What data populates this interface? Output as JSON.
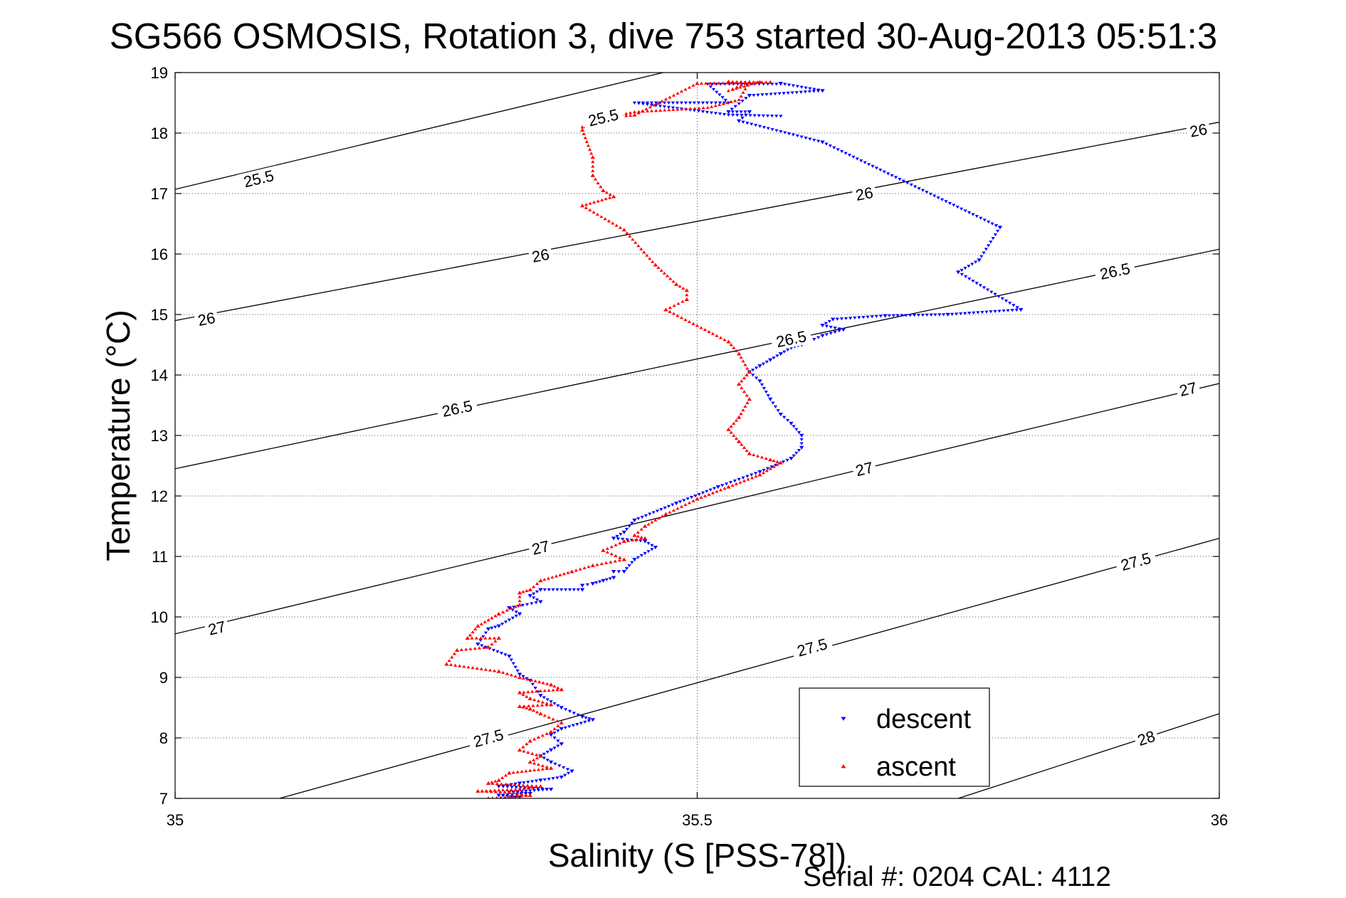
{
  "chart_data": {
    "type": "scatter",
    "title": "SG566 OSMOSIS, Rotation 3, dive 753 started 30-Aug-2013 05:51:3",
    "xlabel": "Salinity (S [PSS-78])",
    "ylabel": "Temperature (°C)",
    "xlim": [
      35,
      36
    ],
    "ylim": [
      7,
      19
    ],
    "x_ticks": [
      35,
      35.5,
      36
    ],
    "x_tick_labels": [
      "35",
      "35.5",
      "36"
    ],
    "y_ticks": [
      7,
      8,
      9,
      10,
      11,
      12,
      13,
      14,
      15,
      16,
      17,
      18,
      19
    ],
    "y_tick_labels": [
      "7",
      "8",
      "9",
      "10",
      "11",
      "12",
      "13",
      "14",
      "15",
      "16",
      "17",
      "18",
      "19"
    ],
    "grid": true,
    "legend_position": "bottom-right",
    "contours": [
      {
        "label": "25.5",
        "points": [
          [
            35.0,
            17.07
          ],
          [
            36.0,
            21.2
          ]
        ],
        "label_positions": [
          [
            35.08,
            17.25
          ],
          [
            35.41,
            18.26
          ]
        ]
      },
      {
        "label": "26",
        "points": [
          [
            35.0,
            14.9
          ],
          [
            36.0,
            18.18
          ]
        ],
        "label_positions": [
          [
            35.03,
            14.93
          ],
          [
            35.35,
            15.98
          ],
          [
            35.66,
            17.0
          ],
          [
            35.98,
            18.05
          ]
        ]
      },
      {
        "label": "26.5",
        "points": [
          [
            35.0,
            12.45
          ],
          [
            36.0,
            16.08
          ]
        ],
        "label_positions": [
          [
            35.27,
            13.45
          ],
          [
            35.59,
            14.6
          ],
          [
            35.9,
            15.72
          ]
        ]
      },
      {
        "label": "27",
        "points": [
          [
            35.0,
            9.72
          ],
          [
            36.0,
            13.86
          ]
        ],
        "label_positions": [
          [
            35.04,
            9.82
          ],
          [
            35.35,
            11.15
          ],
          [
            35.66,
            12.45
          ],
          [
            35.97,
            13.77
          ]
        ]
      },
      {
        "label": "27.5",
        "points": [
          [
            35.1,
            7.0
          ],
          [
            36.0,
            11.3
          ]
        ],
        "label_positions": [
          [
            35.3,
            8.0
          ],
          [
            35.61,
            9.5
          ],
          [
            35.92,
            10.92
          ]
        ]
      },
      {
        "label": "28",
        "points": [
          [
            35.75,
            7.0
          ],
          [
            36.0,
            8.4
          ]
        ],
        "label_positions": [
          [
            35.93,
            8.0
          ]
        ]
      }
    ],
    "series": [
      {
        "name": "descent",
        "color": "#0000ff",
        "marker": "down-triangle",
        "path": [
          [
            35.58,
            18.81
          ],
          [
            35.51,
            18.81
          ],
          [
            35.53,
            18.5
          ],
          [
            35.44,
            18.5
          ],
          [
            35.53,
            18.3
          ],
          [
            35.58,
            18.28
          ]
        ],
        "points": [
          [
            35.62,
            18.7
          ],
          [
            35.58,
            18.82
          ],
          [
            35.55,
            18.62
          ],
          [
            35.53,
            18.35
          ],
          [
            35.55,
            18.35
          ],
          [
            35.54,
            18.2
          ],
          [
            35.62,
            17.85
          ],
          [
            35.79,
            16.44
          ],
          [
            35.77,
            15.9
          ],
          [
            35.75,
            15.7
          ],
          [
            35.81,
            15.08
          ],
          [
            35.74,
            15.0
          ],
          [
            35.68,
            14.98
          ],
          [
            35.63,
            14.92
          ],
          [
            35.62,
            14.82
          ],
          [
            35.64,
            14.75
          ],
          [
            35.62,
            14.65
          ],
          [
            35.6,
            14.5
          ],
          [
            35.59,
            14.45
          ],
          [
            35.58,
            14.35
          ],
          [
            35.57,
            14.25
          ],
          [
            35.56,
            14.15
          ],
          [
            35.55,
            14.05
          ],
          [
            35.56,
            13.9
          ],
          [
            35.57,
            13.6
          ],
          [
            35.58,
            13.35
          ],
          [
            35.59,
            13.2
          ],
          [
            35.6,
            13.0
          ],
          [
            35.6,
            12.8
          ],
          [
            35.59,
            12.62
          ],
          [
            35.56,
            12.4
          ],
          [
            35.52,
            12.15
          ],
          [
            35.48,
            11.88
          ],
          [
            35.44,
            11.6
          ],
          [
            35.43,
            11.4
          ],
          [
            35.42,
            11.3
          ],
          [
            35.45,
            11.25
          ],
          [
            35.46,
            11.15
          ],
          [
            35.44,
            10.95
          ],
          [
            35.43,
            10.75
          ],
          [
            35.42,
            10.65
          ],
          [
            35.41,
            10.6
          ],
          [
            35.39,
            10.52
          ],
          [
            35.42,
            10.75
          ],
          [
            35.4,
            10.55
          ],
          [
            35.39,
            10.45
          ],
          [
            35.35,
            10.25
          ],
          [
            35.33,
            10.05
          ],
          [
            35.31,
            9.85
          ],
          [
            35.29,
            9.55
          ],
          [
            35.35,
            10.45
          ],
          [
            35.34,
            10.35
          ],
          [
            35.32,
            10.15
          ],
          [
            35.3,
            9.8
          ],
          [
            35.32,
            9.35
          ],
          [
            35.33,
            9.05
          ],
          [
            35.34,
            8.95
          ],
          [
            35.35,
            8.7
          ],
          [
            35.37,
            8.5
          ],
          [
            35.39,
            8.35
          ],
          [
            35.4,
            8.3
          ],
          [
            35.37,
            8.15
          ],
          [
            35.36,
            8.05
          ],
          [
            35.37,
            7.9
          ],
          [
            35.36,
            7.8
          ],
          [
            35.35,
            7.7
          ],
          [
            35.36,
            7.6
          ],
          [
            35.38,
            7.45
          ],
          [
            35.37,
            7.35
          ],
          [
            35.35,
            7.3
          ],
          [
            35.33,
            7.25
          ],
          [
            35.31,
            7.2
          ],
          [
            35.32,
            7.1
          ],
          [
            35.34,
            7.08
          ],
          [
            35.36,
            7.15
          ],
          [
            35.31,
            7.05
          ],
          [
            35.33,
            7.02
          ]
        ]
      },
      {
        "name": "ascent",
        "color": "#ff0000",
        "marker": "up-triangle",
        "path": [
          [
            35.56,
            18.85
          ],
          [
            35.53,
            18.7
          ],
          [
            35.55,
            18.85
          ],
          [
            35.54,
            18.55
          ],
          [
            35.51,
            18.42
          ],
          [
            35.44,
            18.35
          ],
          [
            35.42,
            18.28
          ],
          [
            35.41,
            18.2
          ],
          [
            35.39,
            18.1
          ]
        ],
        "points": [
          [
            35.57,
            18.84
          ],
          [
            35.53,
            18.85
          ],
          [
            35.5,
            18.82
          ],
          [
            35.44,
            18.3
          ],
          [
            35.4,
            18.22
          ],
          [
            35.39,
            18.05
          ],
          [
            35.4,
            17.6
          ],
          [
            35.4,
            17.3
          ],
          [
            35.41,
            17.05
          ],
          [
            35.39,
            16.8
          ],
          [
            35.42,
            16.95
          ],
          [
            35.43,
            16.4
          ],
          [
            35.46,
            15.82
          ],
          [
            35.48,
            15.5
          ],
          [
            35.49,
            15.25
          ],
          [
            35.47,
            15.08
          ],
          [
            35.49,
            15.4
          ],
          [
            35.53,
            14.55
          ],
          [
            35.54,
            14.35
          ],
          [
            35.55,
            14.05
          ],
          [
            35.54,
            13.85
          ],
          [
            35.55,
            13.6
          ],
          [
            35.54,
            13.3
          ],
          [
            35.53,
            13.1
          ],
          [
            35.54,
            12.9
          ],
          [
            35.55,
            12.7
          ],
          [
            35.57,
            12.6
          ],
          [
            35.58,
            12.55
          ],
          [
            35.56,
            12.35
          ],
          [
            35.53,
            12.15
          ],
          [
            35.5,
            11.95
          ],
          [
            35.47,
            11.7
          ],
          [
            35.45,
            11.5
          ],
          [
            35.44,
            11.35
          ],
          [
            35.45,
            11.3
          ],
          [
            35.43,
            11.25
          ],
          [
            35.41,
            11.1
          ],
          [
            35.43,
            10.95
          ],
          [
            35.4,
            10.85
          ],
          [
            35.38,
            10.75
          ],
          [
            35.35,
            10.6
          ],
          [
            35.33,
            10.4
          ],
          [
            35.33,
            10.2
          ],
          [
            35.34,
            10.45
          ],
          [
            35.31,
            10.05
          ],
          [
            35.29,
            9.85
          ],
          [
            35.28,
            9.65
          ],
          [
            35.27,
            9.45
          ],
          [
            35.31,
            9.65
          ],
          [
            35.3,
            9.5
          ],
          [
            35.26,
            9.22
          ],
          [
            35.31,
            9.1
          ],
          [
            35.33,
            9.0
          ],
          [
            35.36,
            8.88
          ],
          [
            35.37,
            8.8
          ],
          [
            35.33,
            8.75
          ],
          [
            35.34,
            8.65
          ],
          [
            35.36,
            8.55
          ],
          [
            35.34,
            8.48
          ],
          [
            35.33,
            8.52
          ],
          [
            35.35,
            8.4
          ],
          [
            35.37,
            8.25
          ],
          [
            35.36,
            8.1
          ],
          [
            35.34,
            7.95
          ],
          [
            35.33,
            7.8
          ],
          [
            35.35,
            7.7
          ],
          [
            35.34,
            7.6
          ],
          [
            35.36,
            7.5
          ],
          [
            35.32,
            7.42
          ],
          [
            35.31,
            7.3
          ],
          [
            35.3,
            7.25
          ],
          [
            35.32,
            7.1
          ],
          [
            35.34,
            7.05
          ],
          [
            35.29,
            7.12
          ],
          [
            35.35,
            7.2
          ],
          [
            35.33,
            7.15
          ],
          [
            35.3,
            7.0
          ]
        ]
      }
    ]
  },
  "footer": {
    "serial_label": "Serial #: 0204  CAL: 4112"
  }
}
